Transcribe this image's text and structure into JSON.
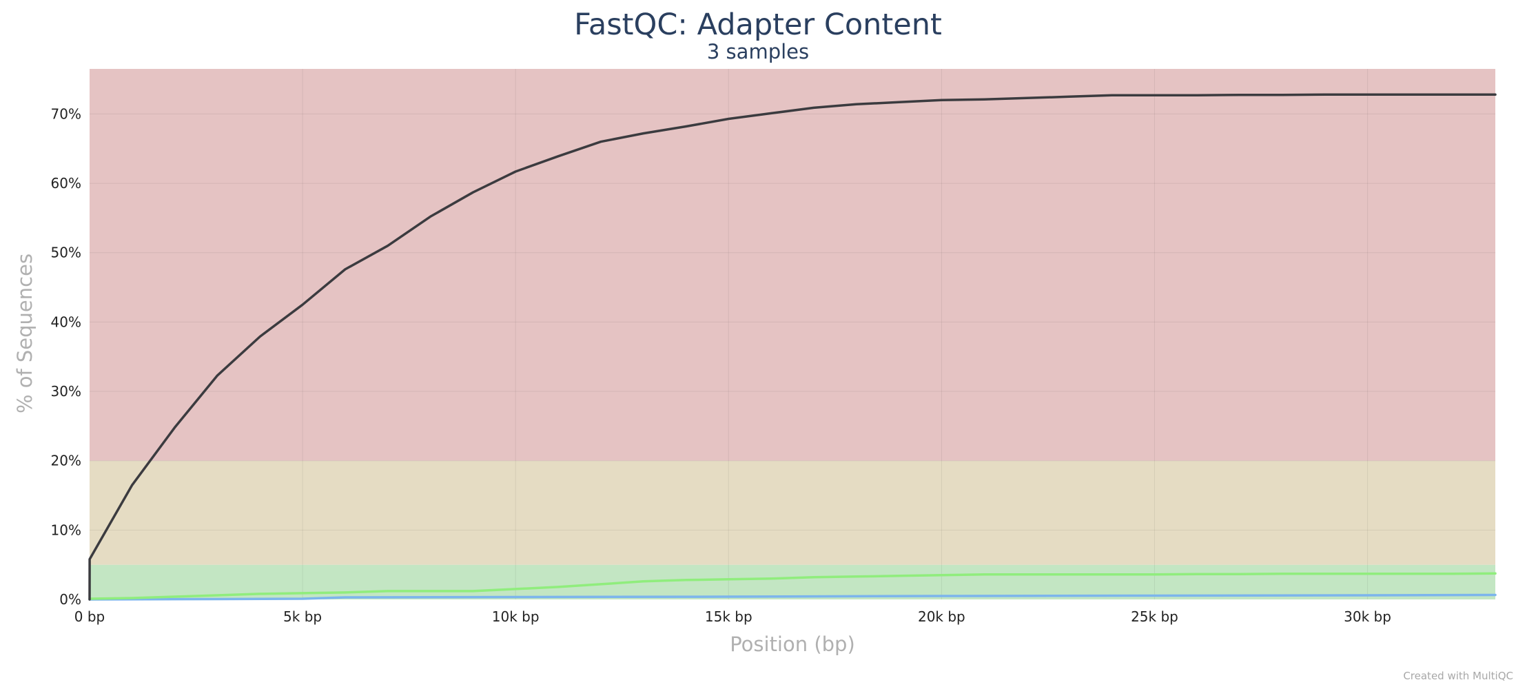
{
  "chart_data": {
    "type": "line",
    "title": "FastQC: Adapter Content",
    "subtitle": "3 samples",
    "xlabel": "Position (bp)",
    "ylabel": "% of Sequences",
    "xlim": [
      0,
      33000
    ],
    "ylim": [
      0,
      76.5
    ],
    "x_ticks": [
      0,
      5000,
      10000,
      15000,
      20000,
      25000,
      30000
    ],
    "x_tick_labels": [
      "0 bp",
      "5k bp",
      "10k bp",
      "15k bp",
      "20k bp",
      "25k bp",
      "30k bp"
    ],
    "y_ticks": [
      0,
      10,
      20,
      30,
      40,
      50,
      60,
      70
    ],
    "y_tick_labels": [
      "0%",
      "10%",
      "20%",
      "30%",
      "40%",
      "50%",
      "60%",
      "70%"
    ],
    "grid": true,
    "bands": [
      {
        "from": 0,
        "to": 5,
        "color": "#c3e6c3"
      },
      {
        "from": 5,
        "to": 20,
        "color": "#e5dcc3"
      },
      {
        "from": 20,
        "to": 76.5,
        "color": "#e5c3c3"
      }
    ],
    "series": [
      {
        "color": "#3b3b3f",
        "x": [
          0,
          1,
          1000,
          2000,
          3000,
          4000,
          5000,
          6000,
          7000,
          8000,
          9000,
          10000,
          11000,
          12000,
          13000,
          14000,
          15000,
          16000,
          17000,
          18000,
          19000,
          20000,
          21000,
          22000,
          23000,
          24000,
          25000,
          26000,
          27000,
          28000,
          29000,
          30000,
          31000,
          32000,
          33000
        ],
        "y": [
          0,
          5.8,
          16.5,
          24.8,
          32.3,
          37.9,
          42.5,
          47.6,
          51.0,
          55.2,
          58.7,
          61.7,
          63.9,
          66.0,
          67.2,
          68.2,
          69.3,
          70.1,
          70.9,
          71.4,
          71.7,
          72.0,
          72.1,
          72.3,
          72.5,
          72.7,
          72.7,
          72.7,
          72.75,
          72.75,
          72.8,
          72.8,
          72.8,
          72.8,
          72.8
        ]
      },
      {
        "color": "#90ed7d",
        "x": [
          0,
          1000,
          2000,
          3000,
          4000,
          5000,
          6000,
          7000,
          8000,
          9000,
          10000,
          11000,
          12000,
          13000,
          14000,
          15000,
          16000,
          17000,
          18000,
          19000,
          20000,
          21000,
          22000,
          23000,
          24000,
          25000,
          26000,
          27000,
          28000,
          29000,
          30000,
          31000,
          32000,
          33000
        ],
        "y": [
          0.1,
          0.2,
          0.4,
          0.6,
          0.8,
          0.9,
          1.0,
          1.2,
          1.2,
          1.2,
          1.5,
          1.8,
          2.2,
          2.6,
          2.8,
          2.9,
          3.0,
          3.2,
          3.3,
          3.4,
          3.5,
          3.6,
          3.6,
          3.6,
          3.6,
          3.6,
          3.65,
          3.65,
          3.7,
          3.7,
          3.7,
          3.7,
          3.7,
          3.75
        ]
      },
      {
        "color": "#7cb5ec",
        "x": [
          0,
          3000,
          5000,
          6000,
          10000,
          15000,
          20000,
          25000,
          30000,
          33000
        ],
        "y": [
          0.0,
          0.05,
          0.1,
          0.3,
          0.35,
          0.4,
          0.5,
          0.55,
          0.6,
          0.65
        ]
      }
    ]
  },
  "footer": {
    "credit": "Created with MultiQC"
  }
}
